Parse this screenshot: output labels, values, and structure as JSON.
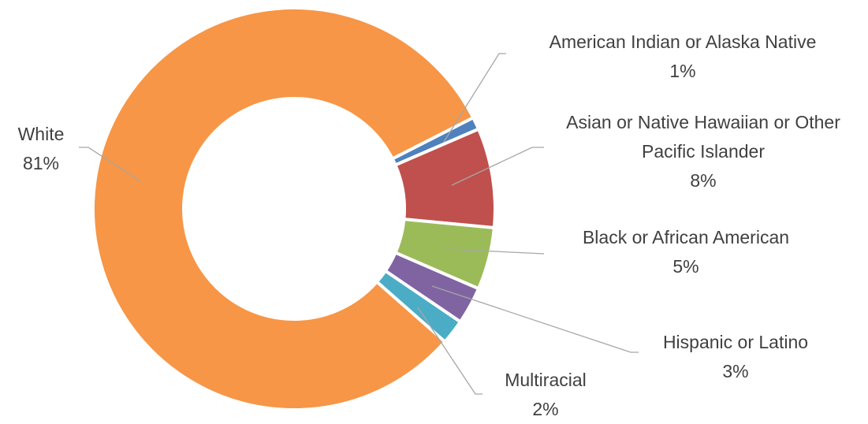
{
  "chart_data": {
    "type": "donut",
    "categories": [
      "American Indian or Alaska Native",
      "Asian or Native Hawaiian or Other Pacific Islander",
      "Black or African American",
      "Hispanic or Latino",
      "Multiracial",
      "White"
    ],
    "values": [
      1,
      8,
      5,
      3,
      2,
      81
    ],
    "value_labels": [
      "1%",
      "8%",
      "5%",
      "3%",
      "2%",
      "81%"
    ],
    "colors": [
      "#4f81bd",
      "#c0504d",
      "#9bbb59",
      "#8064a2",
      "#4bacc6",
      "#f79646"
    ]
  }
}
